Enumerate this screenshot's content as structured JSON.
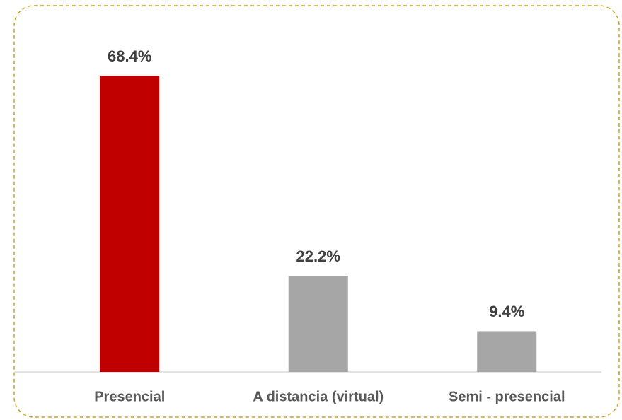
{
  "chart_data": {
    "type": "bar",
    "categories": [
      "Presencial",
      "A distancia (virtual)",
      "Semi - presencial"
    ],
    "values": [
      68.4,
      22.2,
      9.4
    ],
    "value_labels": [
      "68.4%",
      "22.2%",
      "9.4%"
    ],
    "colors": [
      "#c00000",
      "#a6a6a6",
      "#a6a6a6"
    ]
  }
}
